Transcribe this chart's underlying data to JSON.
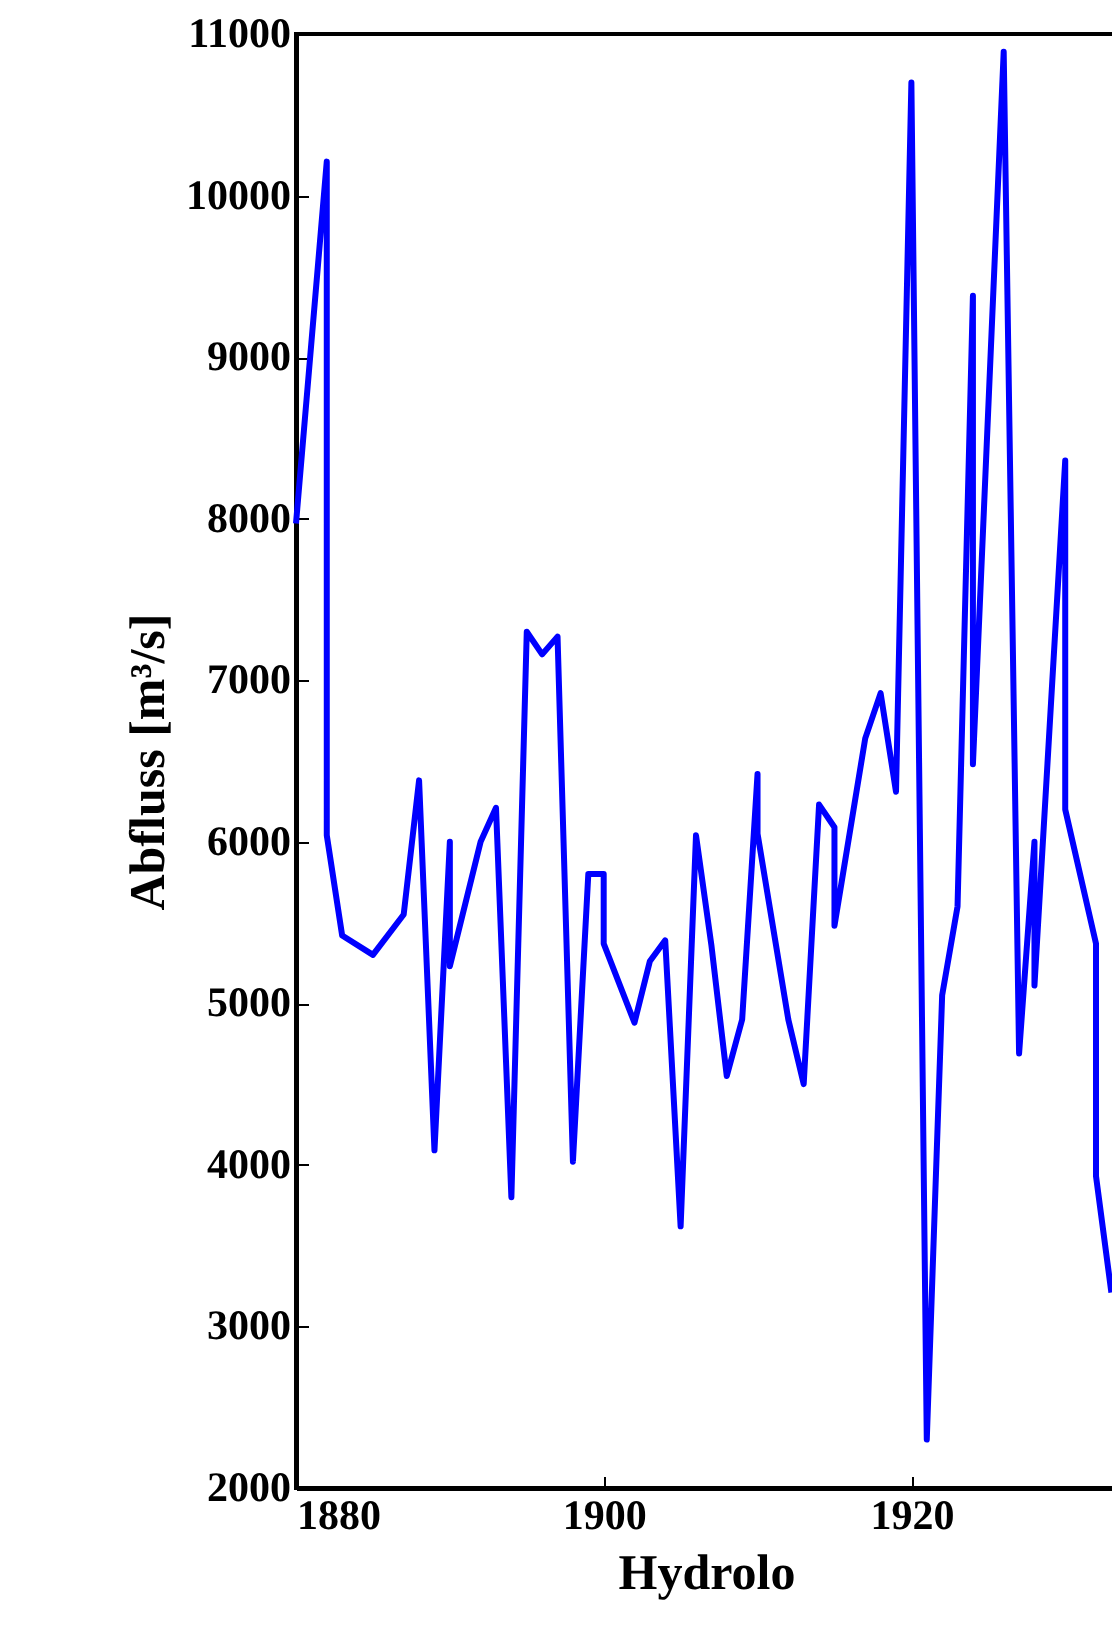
{
  "chart_data": {
    "type": "line",
    "xlabel": "Hydrolo",
    "ylabel": "Abfluss [m³/s]",
    "x": [
      1880,
      1882,
      1882,
      1883,
      1885,
      1887,
      1888,
      1889,
      1890,
      1890,
      1892,
      1893,
      1894,
      1895,
      1896,
      1897,
      1898,
      1899,
      1900,
      1900,
      1902,
      1903,
      1904,
      1905,
      1906,
      1907,
      1908,
      1909,
      1910,
      1910,
      1912,
      1913,
      1914,
      1915,
      1915,
      1917,
      1918,
      1919,
      1920,
      1921,
      1922,
      1923,
      1924,
      1924,
      1926,
      1927,
      1928,
      1928,
      1930,
      1930,
      1932,
      1932,
      1933
    ],
    "series": [
      {
        "color": "#0000ff",
        "values": [
          7970,
          10210,
          6040,
          5420,
          5300,
          5550,
          6380,
          4090,
          6000,
          5230,
          6000,
          6210,
          3800,
          7300,
          7160,
          7270,
          4020,
          5800,
          5800,
          5370,
          4880,
          5260,
          5390,
          3620,
          6040,
          5360,
          4550,
          4900,
          6420,
          6050,
          4900,
          4500,
          6230,
          6090,
          5480,
          6640,
          6920,
          6310,
          10700,
          2300,
          5050,
          5600,
          9380,
          6480,
          10890,
          4690,
          6000,
          5110,
          8360,
          6200,
          5370,
          3930,
          3210
        ]
      }
    ],
    "xlim": [
      1880,
      1933.3
    ],
    "xticks": [
      1880,
      1900,
      1920
    ],
    "ylim": [
      2000,
      11000
    ],
    "yticks": [
      2000,
      3000,
      4000,
      5000,
      6000,
      7000,
      8000,
      9000,
      10000,
      11000
    ],
    "grid": false,
    "marker": "none",
    "line_style": "solid"
  }
}
